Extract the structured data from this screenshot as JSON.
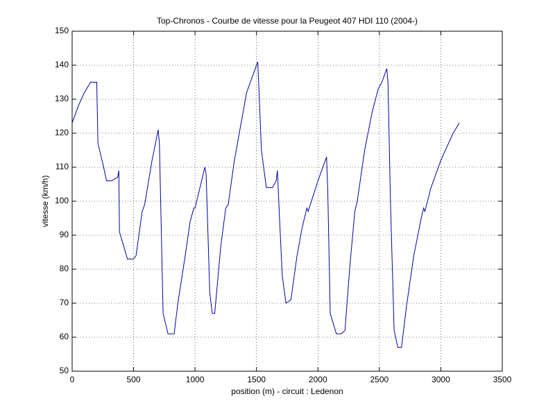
{
  "chart_data": {
    "type": "line",
    "title": "Top-Chronos - Courbe de vitesse pour la Peugeot 407 HDI 110 (2004-)",
    "x_label": "position (m) - circuit : Ledenon",
    "y_label": "vitesse (km/h)",
    "color": "#0000a0",
    "grid": true,
    "xlim": [
      0,
      3500
    ],
    "xticks": [
      0,
      500,
      1000,
      1500,
      2000,
      2500,
      3000,
      3500
    ],
    "ylim": [
      50,
      150
    ],
    "yticks": [
      50,
      60,
      70,
      80,
      90,
      100,
      110,
      120,
      130,
      140,
      150
    ],
    "x": [
      0,
      50,
      100,
      150,
      200,
      210,
      250,
      280,
      320,
      370,
      380,
      385,
      450,
      500,
      520,
      570,
      590,
      650,
      700,
      710,
      740,
      780,
      830,
      860,
      920,
      960,
      990,
      1000,
      1080,
      1090,
      1120,
      1140,
      1160,
      1210,
      1250,
      1270,
      1320,
      1380,
      1420,
      1450,
      1490,
      1510,
      1520,
      1540,
      1580,
      1630,
      1660,
      1670,
      1690,
      1710,
      1740,
      1780,
      1830,
      1870,
      1910,
      1920,
      2000,
      2070,
      2080,
      2100,
      2150,
      2190,
      2220,
      2260,
      2300,
      2320,
      2380,
      2440,
      2490,
      2520,
      2560,
      2570,
      2590,
      2620,
      2650,
      2680,
      2720,
      2780,
      2840,
      2860,
      2870,
      2920,
      3000,
      3050,
      3100,
      3150
    ],
    "values": [
      123,
      128,
      132,
      135,
      135,
      117,
      111,
      106,
      106,
      107,
      109,
      91,
      83,
      83,
      84,
      97,
      99,
      112,
      121,
      117,
      67,
      61,
      61,
      70,
      84,
      94,
      98,
      98,
      110,
      108,
      73,
      67,
      67,
      87,
      98,
      99,
      112,
      124,
      132,
      135,
      139,
      141,
      133,
      115,
      104,
      104,
      106,
      109,
      93,
      78,
      70,
      71,
      84,
      92,
      98,
      97,
      106,
      113,
      103,
      67,
      61,
      61,
      62,
      81,
      97,
      100,
      115,
      126,
      133,
      135,
      139,
      135,
      100,
      62,
      57,
      57,
      69,
      84,
      95,
      98,
      97,
      104,
      112,
      116,
      120,
      123
    ]
  }
}
